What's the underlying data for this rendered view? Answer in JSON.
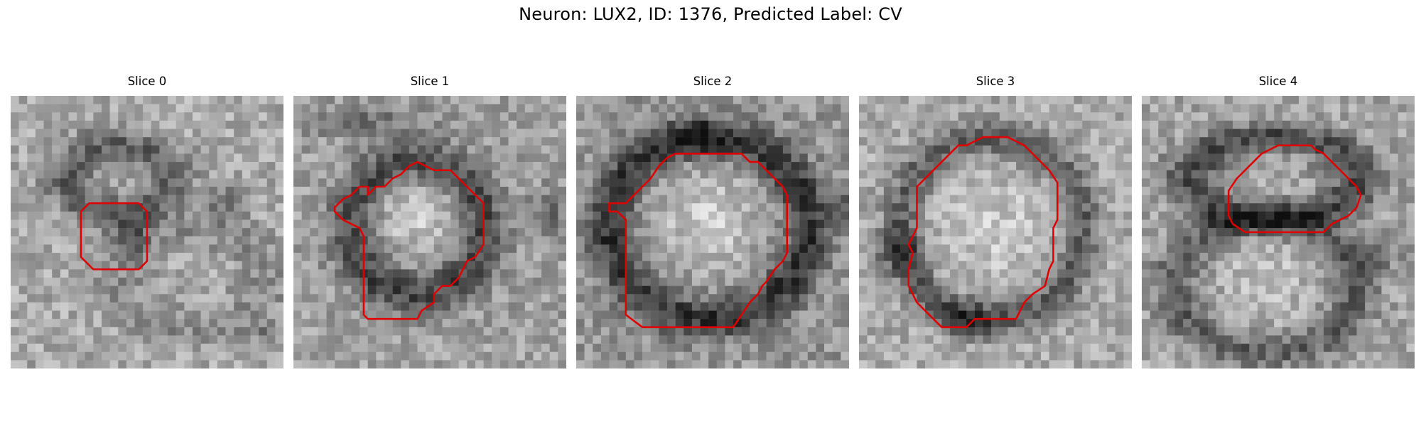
{
  "figure": {
    "title": "Neuron: LUX2, ID: 1376, Predicted Label: CV"
  },
  "slices": [
    {
      "label": "Slice 0"
    },
    {
      "label": "Slice 1"
    },
    {
      "label": "Slice 2"
    },
    {
      "label": "Slice 3"
    },
    {
      "label": "Slice 4"
    }
  ],
  "colors": {
    "contour": "#e00000",
    "colormap": "gray"
  }
}
